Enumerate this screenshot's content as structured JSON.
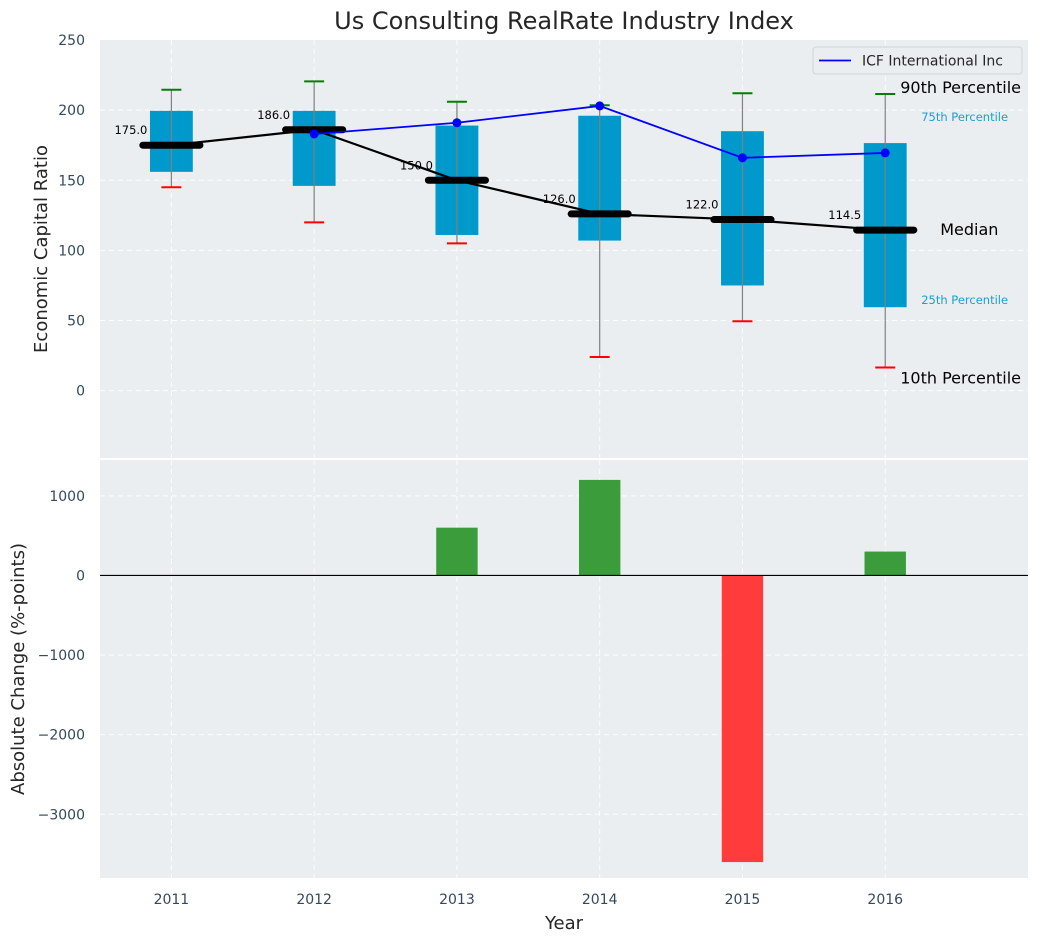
{
  "chart_data": [
    {
      "type": "box-line",
      "title": "Us Consulting RealRate Industry Index",
      "xlabel": "",
      "ylabel": "Economic Capital Ratio",
      "ylim": [
        -48,
        250
      ],
      "xlim": [
        2010.5,
        2017.0
      ],
      "yticks": [
        0,
        50,
        100,
        150,
        200,
        250
      ],
      "grid": true,
      "categories": [
        2011,
        2012,
        2013,
        2014,
        2015,
        2016
      ],
      "percentiles": {
        "p10": [
          145,
          120,
          105,
          24,
          49.5,
          16.5
        ],
        "p25": [
          156,
          146,
          111,
          107,
          75,
          59.5
        ],
        "median": [
          175.0,
          186.0,
          150.0,
          126.0,
          122.0,
          114.5
        ],
        "p75": [
          199.5,
          199.5,
          189,
          196,
          185,
          176.5
        ],
        "p90": [
          214.5,
          220.5,
          206,
          203.5,
          212,
          211.5
        ]
      },
      "median_labels": [
        "175.0",
        "186.0",
        "150.0",
        "126.0",
        "122.0",
        "114.5"
      ],
      "series": [
        {
          "name": "ICF International Inc",
          "color": "#0000ff",
          "x": [
            2012,
            2013,
            2014,
            2015,
            2016
          ],
          "values": [
            183,
            191,
            203,
            166,
            169.5
          ]
        }
      ],
      "legend": {
        "entries": [
          "ICF International Inc"
        ],
        "placement": "top-right"
      },
      "annotations": {
        "p90": "90th Percentile",
        "p75": "75th Percentile",
        "median": "Median",
        "p25": "25th Percentile",
        "p10": "10th Percentile"
      },
      "colors": {
        "box": "#0099cc",
        "median": "#000000",
        "p90_cap": "#008000",
        "p10_cap": "#ff0000",
        "whisker": "#808080",
        "background": "#eaeef0",
        "annotation_small": "#1a9fcf"
      }
    },
    {
      "type": "bar",
      "title": "",
      "xlabel": "Year",
      "ylabel": "Absolute Change (%-points)",
      "ylim": [
        -3800,
        1450
      ],
      "xlim": [
        2010.5,
        2017.0
      ],
      "yticks": [
        1000,
        0,
        -1000,
        -2000,
        -3000
      ],
      "ytick_labels": [
        "1000",
        "0",
        "−1000",
        "−2000",
        "−3000"
      ],
      "grid": true,
      "categories": [
        2011,
        2012,
        2013,
        2014,
        2015,
        2016
      ],
      "xtick_labels": [
        "2011",
        "2012",
        "2013",
        "2014",
        "2015",
        "2016"
      ],
      "values": [
        0,
        0,
        600,
        1200,
        -3600,
        300
      ],
      "colors": {
        "positive": "#3a9c3a",
        "negative": "#ff3b3b",
        "zero_line": "#000000"
      }
    }
  ]
}
